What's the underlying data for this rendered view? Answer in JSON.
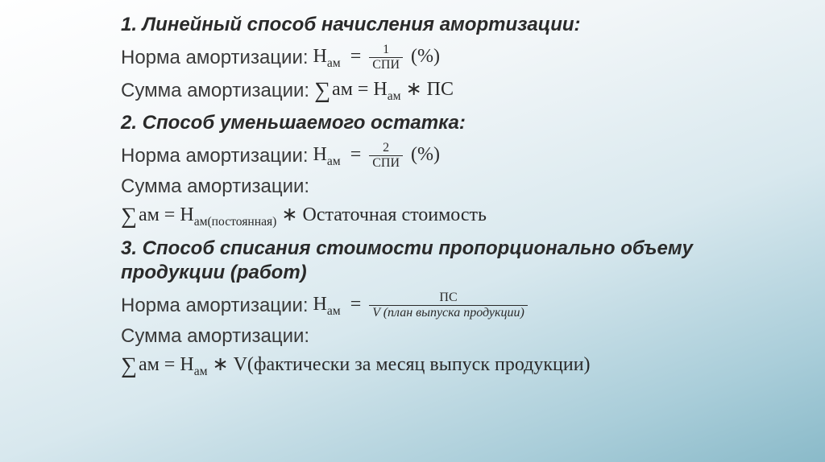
{
  "s1": {
    "heading": "1. Линейный способ начисления амортизации:",
    "norma_label": "Норма амортизации:",
    "norma_eq_left": "Н",
    "norma_eq_sub": "ам",
    "eq": "=",
    "frac_num": "1",
    "frac_den": "СПИ",
    "pct": "(%)",
    "summa_label": "Сумма амортизации:",
    "sum_sym": "∑",
    "sum_body": "ам = Н",
    "sum_sub": "ам",
    "sum_tail": " ∗ ПС"
  },
  "s2": {
    "heading": "2. Способ уменьшаемого остатка:",
    "norma_label": "Норма амортизации:",
    "H": "Н",
    "am": "ам",
    "eq": "=",
    "frac_num": "2",
    "frac_den": "СПИ",
    "pct": "(%)",
    "summa_label": "Сумма амортизации:",
    "sum_sym": "∑",
    "sum_left": "ам = Н",
    "sum_sub": "ам(постоянная)",
    "sum_tail": " ∗ Остаточная стоимость"
  },
  "s3": {
    "heading": "3. Способ списания стоимости пропорционально объему продукции (работ)",
    "norma_label": "Норма амортизации:",
    "H": "Н",
    "am": "ам",
    "eq": "=",
    "frac_num": "ПС",
    "frac_den": "V (план выпуска продукции)",
    "summa_label": "Сумма амортизации:",
    "sum_sym": "∑",
    "sum_left": "ам = Н",
    "sum_sub": "ам",
    "sum_tail": " ∗ V(фактически за  месяц выпуск продукции)"
  }
}
